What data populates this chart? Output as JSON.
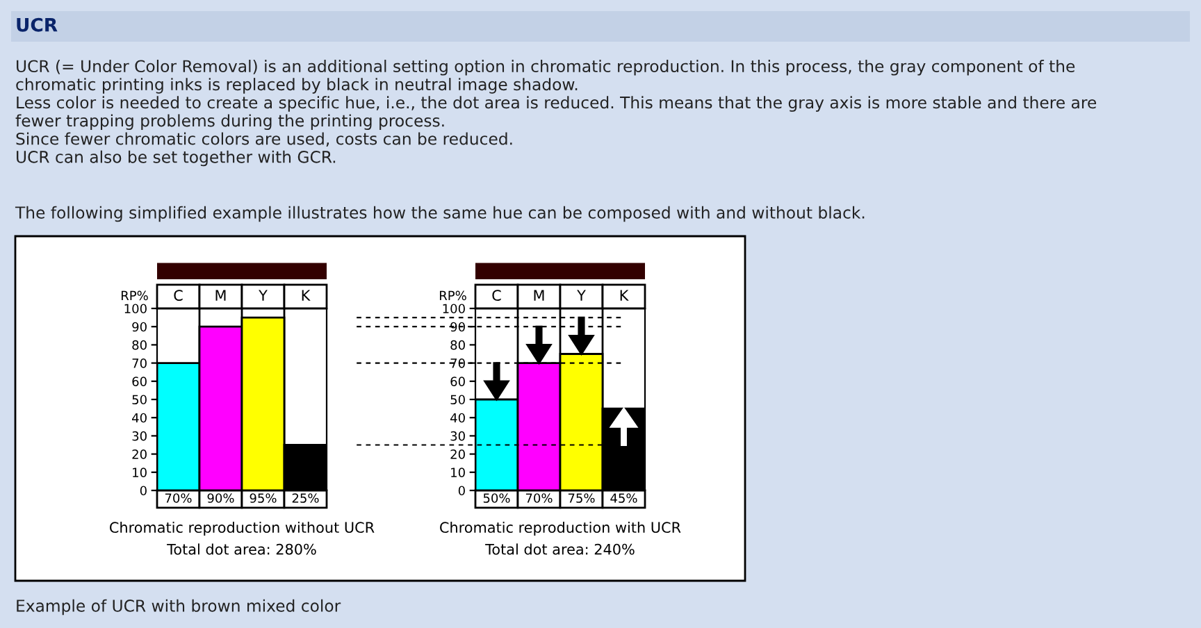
{
  "chart_data": [
    {
      "type": "bar",
      "title": "UCR",
      "subtitle": "UCR (= Under Color Removal) is an additional setting option in chromatic reproduction. In this process, the gray component of the\nchromatic printing inks is replaced by black in neutral image shadow.\nLess color is needed to create a specific hue, i.e., the dot area is reduced. This means that the gray axis is more stable and there are\nfewer trapping problems during the printing process.\nSince fewer chromatic colors are used, costs can be reduced.\nUCR can also be set together with GCR.",
      "annotations": [
        "The following simplified example illustrates how the same hue can be composed with and without black.",
        "Total dot area: 280%",
        "Example of UCR with brown mixed color"
      ],
      "xlabel": "Chromatic reproduction without UCR",
      "ylabel": "RP%",
      "categories": [
        "C",
        "M",
        "Y",
        "K"
      ],
      "values": [
        70,
        90,
        95,
        25
      ],
      "colors": [
        "#00ffff",
        "#ff00ff",
        "#ffff00",
        "#000000"
      ],
      "value_labels": [
        "70%",
        "90%",
        "95%",
        "25%"
      ],
      "ylim": [
        0,
        100
      ],
      "yticks": [
        0,
        10,
        20,
        30,
        40,
        50,
        60,
        70,
        80,
        90,
        100
      ]
    },
    {
      "type": "bar",
      "annotations": [
        "Total dot area: 240%"
      ],
      "xlabel": "Chromatic reproduction with UCR",
      "ylabel": "RP%",
      "categories": [
        "C",
        "M",
        "Y",
        "K"
      ],
      "values": [
        50,
        70,
        75,
        45
      ],
      "colors": [
        "#00ffff",
        "#ff00ff",
        "#ffff00",
        "#000000"
      ],
      "value_labels": [
        "50%",
        "70%",
        "75%",
        "45%"
      ],
      "ylim": [
        0,
        100
      ],
      "yticks": [
        0,
        10,
        20,
        30,
        40,
        50,
        60,
        70,
        80,
        90,
        100
      ],
      "ref_lines": [
        {
          "axis": "y",
          "value": 95,
          "line_style": "dashed"
        },
        {
          "axis": "y",
          "value": 90,
          "line_style": "dashed"
        },
        {
          "axis": "y",
          "value": 70,
          "line_style": "dashed"
        },
        {
          "axis": "y",
          "value": 25,
          "line_style": "dashed"
        }
      ]
    }
  ]
}
